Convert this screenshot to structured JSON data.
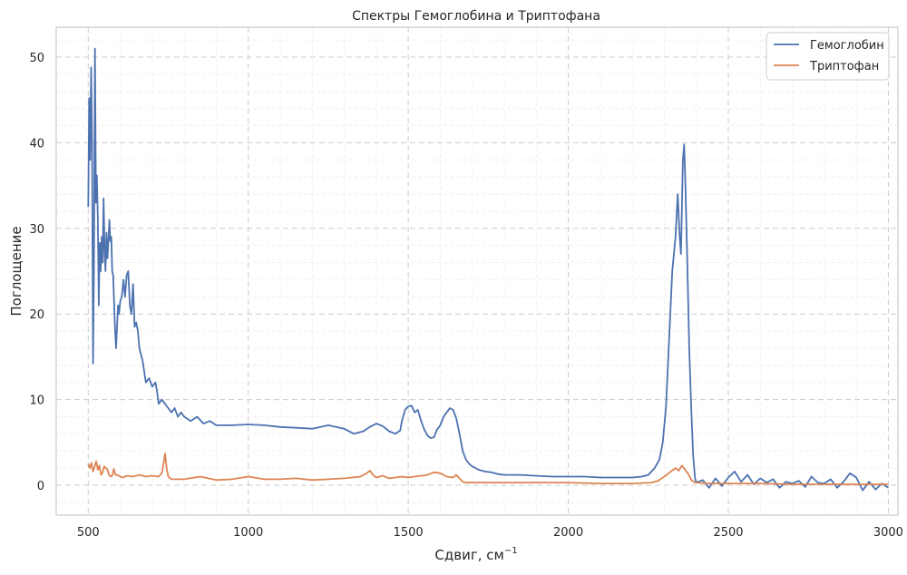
{
  "chart_data": {
    "type": "line",
    "title": "Спектры Гемоглобина и Триптофана",
    "xlabel": "Сдвиг, см",
    "xlabel_sup": "−1",
    "ylabel": "Поглощение",
    "xlim": [
      400,
      3030
    ],
    "ylim": [
      -3.5,
      53.5
    ],
    "xticks": [
      500,
      1000,
      1500,
      2000,
      2500,
      3000
    ],
    "xtick_labels": [
      "500",
      "1000",
      "1500",
      "2000",
      "2500",
      "3000"
    ],
    "yticks": [
      0,
      10,
      20,
      30,
      40,
      50
    ],
    "ytick_labels": [
      "0",
      "10",
      "20",
      "30",
      "40",
      "50"
    ],
    "grid": true,
    "minor_grid": true,
    "legend_position": "top-right",
    "series": [
      {
        "name": "Гемоглобин",
        "color": "#4c72b0",
        "points": [
          [
            500,
            32.5
          ],
          [
            503,
            45.2
          ],
          [
            506,
            38
          ],
          [
            509,
            48.8
          ],
          [
            512,
            40
          ],
          [
            515,
            14.2
          ],
          [
            518,
            26
          ],
          [
            521,
            51
          ],
          [
            524,
            33
          ],
          [
            527,
            36.2
          ],
          [
            530,
            31
          ],
          [
            533,
            21
          ],
          [
            536,
            28.3
          ],
          [
            539,
            25
          ],
          [
            542,
            29
          ],
          [
            545,
            26
          ],
          [
            548,
            33.5
          ],
          [
            551,
            27.5
          ],
          [
            554,
            25
          ],
          [
            557,
            29.5
          ],
          [
            560,
            26.5
          ],
          [
            563,
            28.5
          ],
          [
            566,
            31
          ],
          [
            569,
            28.5
          ],
          [
            572,
            29
          ],
          [
            575,
            25
          ],
          [
            578,
            24.5
          ],
          [
            581,
            21
          ],
          [
            584,
            18
          ],
          [
            587,
            16
          ],
          [
            590,
            18.5
          ],
          [
            593,
            21
          ],
          [
            596,
            20
          ],
          [
            600,
            21.5
          ],
          [
            605,
            22
          ],
          [
            610,
            24
          ],
          [
            615,
            22
          ],
          [
            620,
            24.5
          ],
          [
            625,
            25
          ],
          [
            630,
            21
          ],
          [
            635,
            20
          ],
          [
            640,
            23.5
          ],
          [
            645,
            18.5
          ],
          [
            650,
            19
          ],
          [
            655,
            18
          ],
          [
            660,
            16
          ],
          [
            670,
            14.5
          ],
          [
            680,
            12
          ],
          [
            690,
            12.5
          ],
          [
            700,
            11.5
          ],
          [
            710,
            12
          ],
          [
            715,
            11
          ],
          [
            720,
            9.5
          ],
          [
            730,
            10
          ],
          [
            740,
            9.5
          ],
          [
            750,
            9
          ],
          [
            760,
            8.5
          ],
          [
            770,
            9
          ],
          [
            780,
            8
          ],
          [
            790,
            8.5
          ],
          [
            800,
            8
          ],
          [
            820,
            7.5
          ],
          [
            840,
            8
          ],
          [
            860,
            7.2
          ],
          [
            880,
            7.5
          ],
          [
            900,
            7
          ],
          [
            950,
            7
          ],
          [
            1000,
            7.1
          ],
          [
            1050,
            7
          ],
          [
            1100,
            6.8
          ],
          [
            1150,
            6.7
          ],
          [
            1200,
            6.6
          ],
          [
            1250,
            7
          ],
          [
            1300,
            6.6
          ],
          [
            1330,
            6
          ],
          [
            1360,
            6.3
          ],
          [
            1380,
            6.8
          ],
          [
            1400,
            7.2
          ],
          [
            1420,
            6.9
          ],
          [
            1440,
            6.3
          ],
          [
            1460,
            6
          ],
          [
            1475,
            6.4
          ],
          [
            1480,
            7.5
          ],
          [
            1490,
            8.8
          ],
          [
            1500,
            9.2
          ],
          [
            1510,
            9.3
          ],
          [
            1520,
            8.5
          ],
          [
            1530,
            8.8
          ],
          [
            1540,
            7.5
          ],
          [
            1550,
            6.5
          ],
          [
            1560,
            5.8
          ],
          [
            1570,
            5.5
          ],
          [
            1580,
            5.6
          ],
          [
            1590,
            6.5
          ],
          [
            1600,
            7
          ],
          [
            1610,
            8
          ],
          [
            1620,
            8.5
          ],
          [
            1630,
            9
          ],
          [
            1640,
            8.8
          ],
          [
            1650,
            7.8
          ],
          [
            1660,
            6
          ],
          [
            1670,
            4
          ],
          [
            1680,
            3
          ],
          [
            1690,
            2.5
          ],
          [
            1700,
            2.2
          ],
          [
            1720,
            1.8
          ],
          [
            1740,
            1.6
          ],
          [
            1760,
            1.5
          ],
          [
            1780,
            1.3
          ],
          [
            1800,
            1.2
          ],
          [
            1850,
            1.2
          ],
          [
            1900,
            1.1
          ],
          [
            1950,
            1
          ],
          [
            2000,
            1
          ],
          [
            2050,
            1
          ],
          [
            2100,
            0.9
          ],
          [
            2150,
            0.9
          ],
          [
            2200,
            0.9
          ],
          [
            2230,
            1
          ],
          [
            2250,
            1.2
          ],
          [
            2270,
            2
          ],
          [
            2285,
            3
          ],
          [
            2295,
            5
          ],
          [
            2305,
            9
          ],
          [
            2315,
            17
          ],
          [
            2325,
            25
          ],
          [
            2335,
            29
          ],
          [
            2342,
            34
          ],
          [
            2348,
            29
          ],
          [
            2352,
            27
          ],
          [
            2358,
            38
          ],
          [
            2362,
            39.8
          ],
          [
            2366,
            35
          ],
          [
            2372,
            26
          ],
          [
            2378,
            16
          ],
          [
            2384,
            9
          ],
          [
            2390,
            3.5
          ],
          [
            2396,
            0.8
          ],
          [
            2400,
            0.3
          ],
          [
            2420,
            0.6
          ],
          [
            2440,
            -0.3
          ],
          [
            2460,
            0.8
          ],
          [
            2480,
            -0.1
          ],
          [
            2500,
            0.9
          ],
          [
            2520,
            1.6
          ],
          [
            2540,
            0.4
          ],
          [
            2560,
            1.2
          ],
          [
            2580,
            0.1
          ],
          [
            2600,
            0.8
          ],
          [
            2620,
            0.3
          ],
          [
            2640,
            0.7
          ],
          [
            2660,
            -0.3
          ],
          [
            2680,
            0.4
          ],
          [
            2700,
            0.2
          ],
          [
            2720,
            0.5
          ],
          [
            2740,
            -0.2
          ],
          [
            2760,
            1
          ],
          [
            2780,
            0.3
          ],
          [
            2800,
            0.2
          ],
          [
            2820,
            0.7
          ],
          [
            2840,
            -0.3
          ],
          [
            2860,
            0.4
          ],
          [
            2880,
            1.4
          ],
          [
            2900,
            0.9
          ],
          [
            2920,
            -0.6
          ],
          [
            2940,
            0.4
          ],
          [
            2960,
            -0.5
          ],
          [
            2980,
            0.2
          ],
          [
            3000,
            -0.3
          ]
        ]
      },
      {
        "name": "Триптофан",
        "color": "#dd8452",
        "points": [
          [
            500,
            2.5
          ],
          [
            505,
            2
          ],
          [
            510,
            2.6
          ],
          [
            515,
            1.6
          ],
          [
            520,
            2.2
          ],
          [
            525,
            2.8
          ],
          [
            530,
            1.8
          ],
          [
            535,
            2.3
          ],
          [
            540,
            1.2
          ],
          [
            545,
            1.5
          ],
          [
            550,
            2.2
          ],
          [
            555,
            2
          ],
          [
            560,
            1.8
          ],
          [
            565,
            1.2
          ],
          [
            570,
            1
          ],
          [
            575,
            1.1
          ],
          [
            580,
            1.9
          ],
          [
            585,
            1.2
          ],
          [
            590,
            1.2
          ],
          [
            600,
            1
          ],
          [
            610,
            0.9
          ],
          [
            620,
            1.1
          ],
          [
            640,
            1
          ],
          [
            660,
            1.2
          ],
          [
            680,
            1
          ],
          [
            700,
            1.1
          ],
          [
            720,
            1
          ],
          [
            730,
            1.4
          ],
          [
            735,
            2.5
          ],
          [
            740,
            3.7
          ],
          [
            745,
            2
          ],
          [
            750,
            1
          ],
          [
            760,
            0.7
          ],
          [
            800,
            0.7
          ],
          [
            850,
            1
          ],
          [
            900,
            0.6
          ],
          [
            950,
            0.7
          ],
          [
            1000,
            1
          ],
          [
            1050,
            0.7
          ],
          [
            1100,
            0.7
          ],
          [
            1150,
            0.8
          ],
          [
            1200,
            0.6
          ],
          [
            1250,
            0.7
          ],
          [
            1300,
            0.8
          ],
          [
            1350,
            1
          ],
          [
            1370,
            1.4
          ],
          [
            1380,
            1.7
          ],
          [
            1390,
            1.2
          ],
          [
            1400,
            0.9
          ],
          [
            1420,
            1.1
          ],
          [
            1440,
            0.8
          ],
          [
            1460,
            0.9
          ],
          [
            1480,
            1
          ],
          [
            1500,
            0.9
          ],
          [
            1520,
            1
          ],
          [
            1540,
            1.1
          ],
          [
            1560,
            1.2
          ],
          [
            1580,
            1.5
          ],
          [
            1600,
            1.4
          ],
          [
            1620,
            1
          ],
          [
            1640,
            0.9
          ],
          [
            1650,
            1.2
          ],
          [
            1660,
            0.8
          ],
          [
            1670,
            0.4
          ],
          [
            1680,
            0.3
          ],
          [
            1700,
            0.3
          ],
          [
            1800,
            0.3
          ],
          [
            1900,
            0.3
          ],
          [
            2000,
            0.3
          ],
          [
            2100,
            0.2
          ],
          [
            2200,
            0.2
          ],
          [
            2260,
            0.3
          ],
          [
            2280,
            0.5
          ],
          [
            2300,
            1
          ],
          [
            2320,
            1.6
          ],
          [
            2335,
            2
          ],
          [
            2345,
            1.7
          ],
          [
            2355,
            2.3
          ],
          [
            2365,
            1.8
          ],
          [
            2375,
            1.3
          ],
          [
            2385,
            0.6
          ],
          [
            2395,
            0.3
          ],
          [
            2450,
            0.2
          ],
          [
            2500,
            0.2
          ],
          [
            2600,
            0.2
          ],
          [
            2700,
            0.1
          ],
          [
            2800,
            0.1
          ],
          [
            2900,
            0.1
          ],
          [
            3000,
            0.1
          ]
        ]
      }
    ]
  }
}
